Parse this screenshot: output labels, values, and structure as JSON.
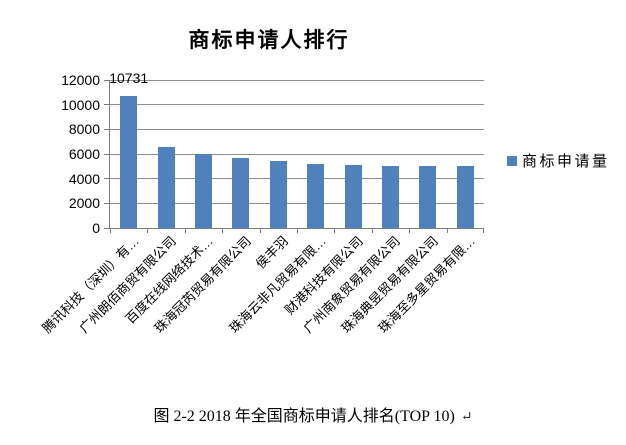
{
  "title": "商标申请人排行",
  "legend": {
    "label": "商标申请量",
    "swatch_color": "#4F81BD"
  },
  "caption": {
    "text": "图 2-2 2018 年全国商标申请人排名(TOP 10)",
    "return_mark": "↵"
  },
  "chart_data": {
    "type": "bar",
    "title": "商标申请人排行",
    "categories": [
      "腾讯科技（深圳）有…",
      "广州朗佰商贸有限公司",
      "百度在线网络技术…",
      "珠海冠芮贸易有限公司",
      "侯丰羽",
      "珠海云非凡贸易有限…",
      "财港科技有限公司",
      "广州南象贸易有限公司",
      "珠海典昱贸易有限公司",
      "珠海至多星贸易有限…"
    ],
    "series": [
      {
        "name": "商标申请量",
        "values": [
          10731,
          6600,
          6000,
          5700,
          5400,
          5150,
          5100,
          5000,
          5000,
          5000
        ]
      }
    ],
    "data_labels": [
      {
        "category_index": 0,
        "text": "10731"
      }
    ],
    "xlabel": "",
    "ylabel": "",
    "ylim": [
      0,
      12000
    ],
    "yticks": [
      0,
      2000,
      4000,
      6000,
      8000,
      10000,
      12000
    ],
    "grid": true,
    "legend_position": "right",
    "bar_color": "#4F81BD",
    "gridline_color": "#8E8E8E"
  }
}
